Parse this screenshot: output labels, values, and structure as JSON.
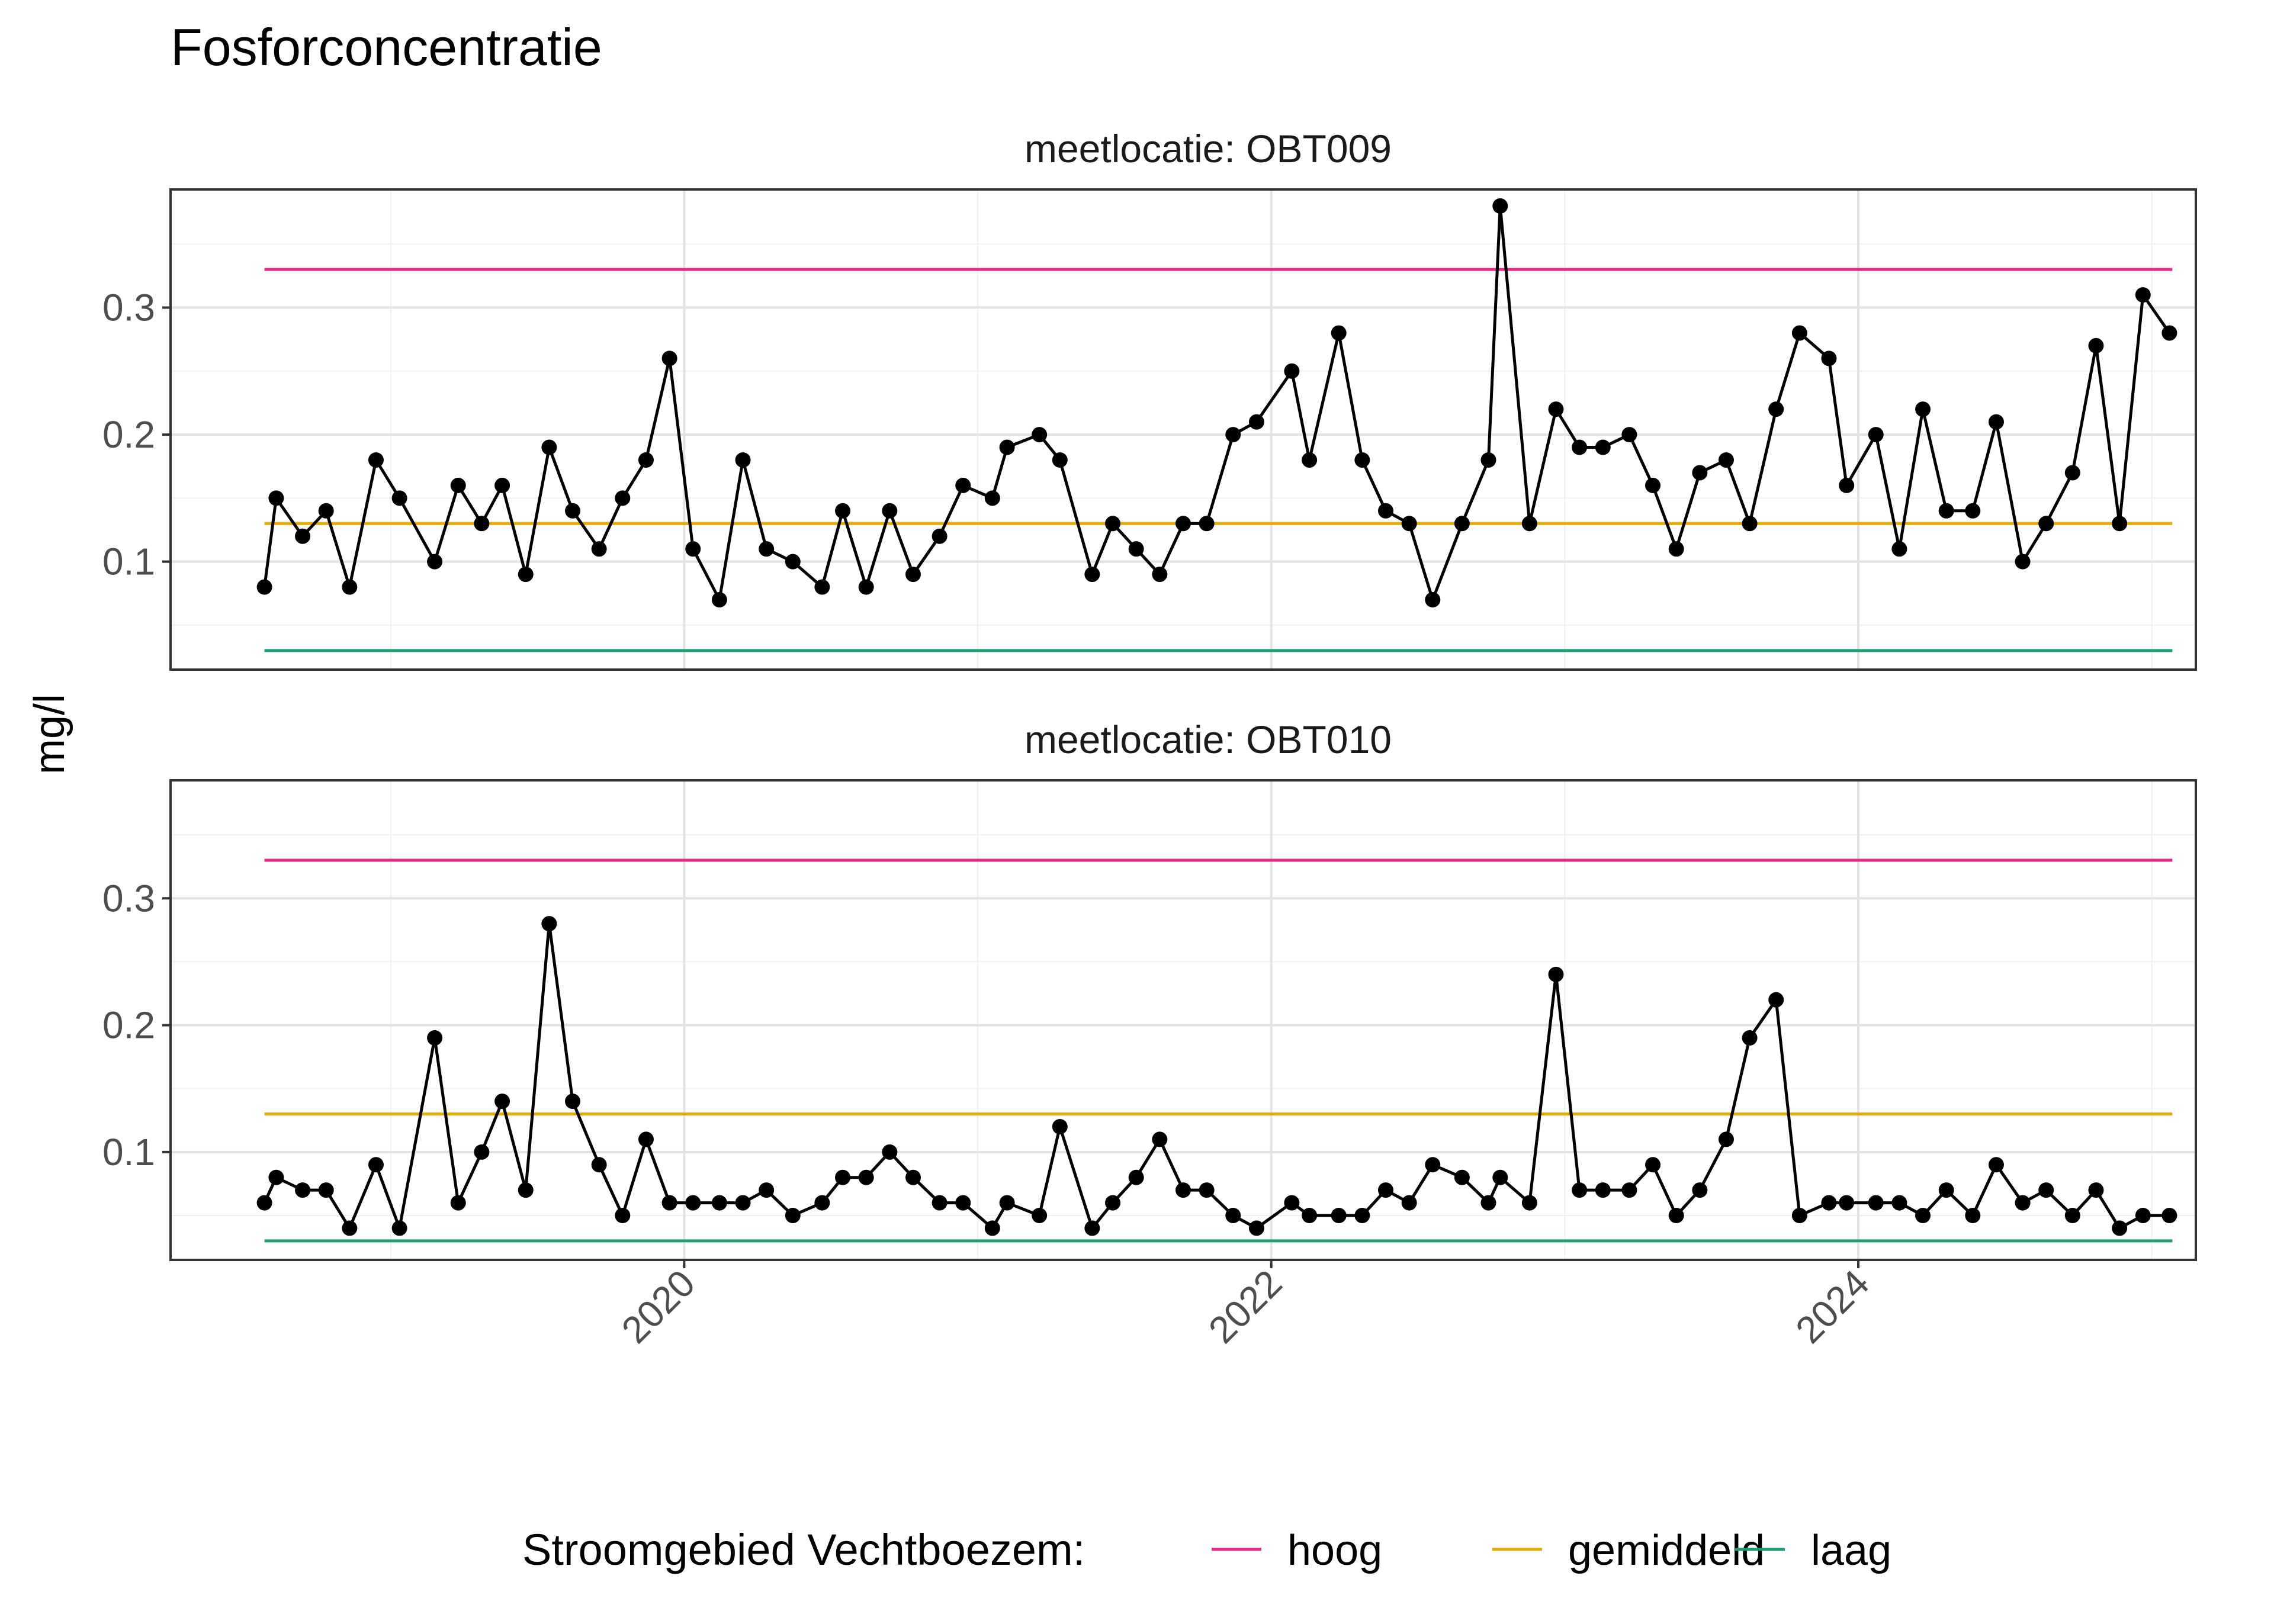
{
  "chart_data": {
    "type": "line",
    "title": "Fosforconcentratie",
    "ylabel": "mg/l",
    "xlabel": "",
    "ylim": [
      0.015,
      0.393
    ],
    "yticks": [
      0.1,
      0.2,
      0.3
    ],
    "ytick_labels": [
      "0.1",
      "0.2",
      "0.3"
    ],
    "xlim": [
      2018.25,
      2025.15
    ],
    "xticks": [
      2020,
      2022,
      2024
    ],
    "xtick_labels": [
      "2020",
      "2022",
      "2024"
    ],
    "grid": true,
    "legend": {
      "title": "Stroomgebied Vechtboezem:",
      "position": "bottom",
      "entries": [
        {
          "label": "hoog",
          "color": "#e7298a"
        },
        {
          "label": "gemiddeld",
          "color": "#e6ab02"
        },
        {
          "label": "laag",
          "color": "#1b9e77"
        }
      ]
    },
    "reference_lines": [
      {
        "name": "hoog",
        "value": 0.33,
        "color": "#e7298a",
        "x_start": 2018.57,
        "x_end": 2025.07
      },
      {
        "name": "gemiddeld",
        "value": 0.13,
        "color": "#e6ab02",
        "x_start": 2018.57,
        "x_end": 2025.07
      },
      {
        "name": "laag",
        "value": 0.03,
        "color": "#1b9e77",
        "x_start": 2018.57,
        "x_end": 2025.07
      }
    ],
    "panels": [
      {
        "strip": "meetlocatie: OBT009",
        "series": [
          {
            "x": [
              2018.57,
              2018.61,
              2018.7,
              2018.78,
              2018.86,
              2018.95,
              2019.03,
              2019.15,
              2019.23,
              2019.31,
              2019.38,
              2019.46,
              2019.54,
              2019.62,
              2019.71,
              2019.79,
              2019.87,
              2019.95,
              2020.03,
              2020.12,
              2020.2,
              2020.28,
              2020.37,
              2020.47,
              2020.54,
              2020.62,
              2020.7,
              2020.78,
              2020.87,
              2020.95,
              2021.05,
              2021.1,
              2021.21,
              2021.28,
              2021.39,
              2021.46,
              2021.54,
              2021.62,
              2021.7,
              2021.78,
              2021.87,
              2021.95,
              2022.07,
              2022.13,
              2022.23,
              2022.31,
              2022.39,
              2022.47,
              2022.55,
              2022.65,
              2022.74,
              2022.78,
              2022.88,
              2022.97,
              2023.05,
              2023.13,
              2023.22,
              2023.3,
              2023.38,
              2023.46,
              2023.55,
              2023.63,
              2023.72,
              2023.8,
              2023.9,
              2023.96,
              2024.06,
              2024.14,
              2024.22,
              2024.3,
              2024.39,
              2024.47,
              2024.56,
              2024.64,
              2024.73,
              2024.81,
              2024.89,
              2024.97,
              2025.06
            ],
            "y": [
              0.08,
              0.15,
              0.12,
              0.14,
              0.08,
              0.18,
              0.15,
              0.1,
              0.16,
              0.13,
              0.16,
              0.09,
              0.19,
              0.14,
              0.11,
              0.15,
              0.18,
              0.26,
              0.11,
              0.07,
              0.18,
              0.11,
              0.1,
              0.08,
              0.14,
              0.08,
              0.14,
              0.09,
              0.12,
              0.16,
              0.15,
              0.19,
              0.2,
              0.18,
              0.09,
              0.13,
              0.11,
              0.09,
              0.13,
              0.13,
              0.2,
              0.21,
              0.25,
              0.18,
              0.28,
              0.18,
              0.14,
              0.13,
              0.07,
              0.13,
              0.18,
              0.38,
              0.13,
              0.22,
              0.19,
              0.19,
              0.2,
              0.16,
              0.11,
              0.17,
              0.18,
              0.13,
              0.22,
              0.28,
              0.26,
              0.16,
              0.2,
              0.11,
              0.22,
              0.14,
              0.14,
              0.21,
              0.1,
              0.13,
              0.17,
              0.27,
              0.13,
              0.31,
              0.28
            ]
          }
        ]
      },
      {
        "strip": "meetlocatie: OBT010",
        "series": [
          {
            "x": [
              2018.57,
              2018.61,
              2018.7,
              2018.78,
              2018.86,
              2018.95,
              2019.03,
              2019.15,
              2019.23,
              2019.31,
              2019.38,
              2019.46,
              2019.54,
              2019.62,
              2019.71,
              2019.79,
              2019.87,
              2019.95,
              2020.03,
              2020.12,
              2020.2,
              2020.28,
              2020.37,
              2020.47,
              2020.54,
              2020.62,
              2020.7,
              2020.78,
              2020.87,
              2020.95,
              2021.05,
              2021.1,
              2021.21,
              2021.28,
              2021.39,
              2021.46,
              2021.54,
              2021.62,
              2021.7,
              2021.78,
              2021.87,
              2021.95,
              2022.07,
              2022.13,
              2022.23,
              2022.31,
              2022.39,
              2022.47,
              2022.55,
              2022.65,
              2022.74,
              2022.78,
              2022.88,
              2022.97,
              2023.05,
              2023.13,
              2023.22,
              2023.3,
              2023.38,
              2023.46,
              2023.55,
              2023.63,
              2023.72,
              2023.8,
              2023.9,
              2023.96,
              2024.06,
              2024.14,
              2024.22,
              2024.3,
              2024.39,
              2024.47,
              2024.56,
              2024.64,
              2024.73,
              2024.81,
              2024.89,
              2024.97,
              2025.06
            ],
            "y": [
              0.06,
              0.08,
              0.07,
              0.07,
              0.04,
              0.09,
              0.04,
              0.19,
              0.06,
              0.1,
              0.14,
              0.07,
              0.28,
              0.14,
              0.09,
              0.05,
              0.11,
              0.06,
              0.06,
              0.06,
              0.06,
              0.07,
              0.05,
              0.06,
              0.08,
              0.08,
              0.1,
              0.08,
              0.06,
              0.06,
              0.04,
              0.06,
              0.05,
              0.12,
              0.04,
              0.06,
              0.08,
              0.11,
              0.07,
              0.07,
              0.05,
              0.04,
              0.06,
              0.05,
              0.05,
              0.05,
              0.07,
              0.06,
              0.09,
              0.08,
              0.06,
              0.08,
              0.06,
              0.24,
              0.07,
              0.07,
              0.07,
              0.09,
              0.05,
              0.07,
              0.11,
              0.19,
              0.22,
              0.05,
              0.06,
              0.06,
              0.06,
              0.06,
              0.05,
              0.07,
              0.05,
              0.09,
              0.06,
              0.07,
              0.05,
              0.07,
              0.04,
              0.05,
              0.05
            ]
          }
        ]
      }
    ]
  }
}
